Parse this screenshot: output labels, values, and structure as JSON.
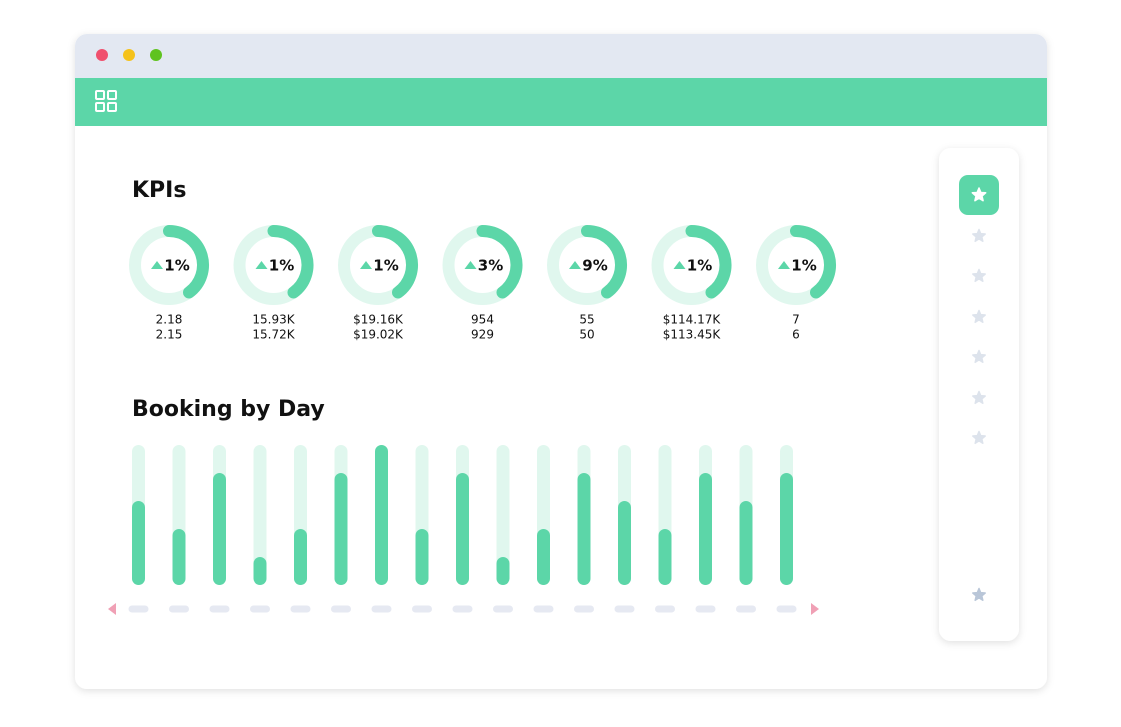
{
  "kpis": {
    "title": "KPIs",
    "items": [
      {
        "change": "1%",
        "current": "2.18",
        "previous": "2.15"
      },
      {
        "change": "1%",
        "current": "15.93K",
        "previous": "15.72K"
      },
      {
        "change": "1%",
        "current": "$19.16K",
        "previous": "$19.02K"
      },
      {
        "change": "3%",
        "current": "954",
        "previous": "929"
      },
      {
        "change": "9%",
        "current": "55",
        "previous": "50"
      },
      {
        "change": "1%",
        "current": "$114.17K",
        "previous": "$113.45K"
      },
      {
        "change": "1%",
        "current": "7",
        "previous": "6"
      }
    ]
  },
  "chart_data": {
    "type": "bar",
    "title": "Booking by Day",
    "values": [
      60,
      40,
      80,
      20,
      40,
      80,
      100,
      40,
      80,
      20,
      40,
      80,
      60,
      40,
      80,
      60,
      80
    ],
    "ylim": [
      0,
      100
    ],
    "color": "#5cd6a8"
  }
}
